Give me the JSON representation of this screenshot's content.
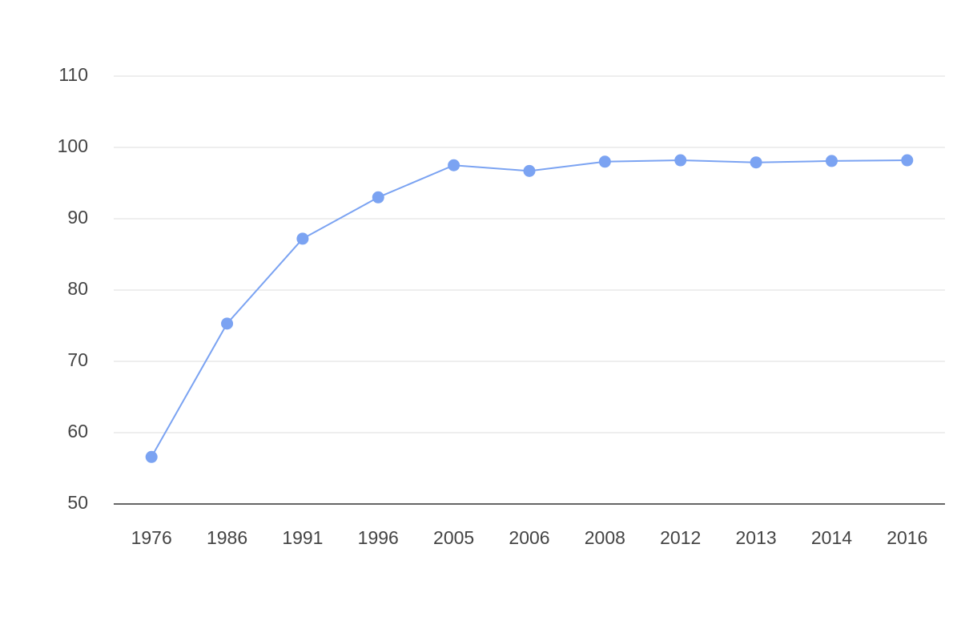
{
  "chart_data": {
    "type": "line",
    "categories": [
      "1976",
      "1986",
      "1991",
      "1996",
      "2005",
      "2006",
      "2008",
      "2012",
      "2013",
      "2014",
      "2016"
    ],
    "values": [
      56.6,
      75.3,
      87.2,
      93.0,
      97.5,
      96.7,
      98.0,
      98.2,
      97.9,
      98.1,
      98.2
    ],
    "color": "#7ba3f2",
    "ylim": [
      50,
      110
    ],
    "yticks": [
      50,
      60,
      70,
      80,
      90,
      100,
      110
    ],
    "grid": true
  }
}
